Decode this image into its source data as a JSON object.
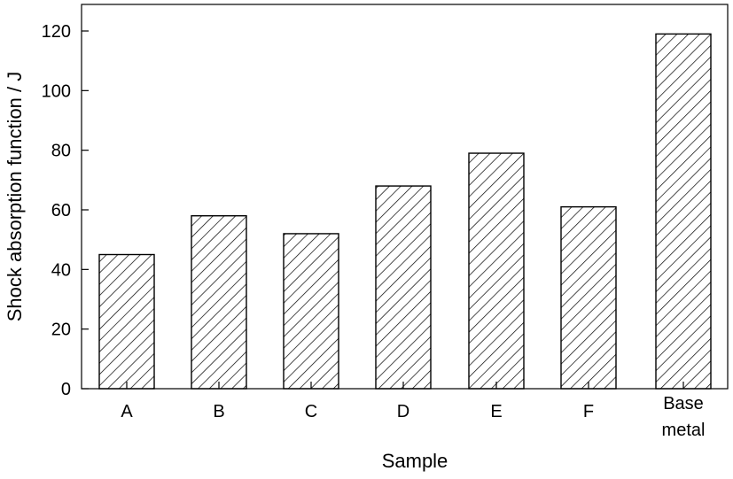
{
  "chart_data": {
    "type": "bar",
    "categories": [
      "A",
      "B",
      "C",
      "D",
      "E",
      "F",
      "Base metal"
    ],
    "values": [
      45,
      58,
      52,
      68,
      79,
      61,
      119
    ],
    "xlabel": "Sample",
    "ylabel": "Shock absorption function / J",
    "ylim": [
      0,
      126
    ],
    "yticks": [
      0,
      20,
      40,
      60,
      80,
      100,
      120
    ],
    "grid": false,
    "bar_fill": "diagonal-hatch",
    "colors": {
      "bar_stroke": "#000000",
      "hatch": "#000000",
      "background": "#ffffff"
    }
  }
}
